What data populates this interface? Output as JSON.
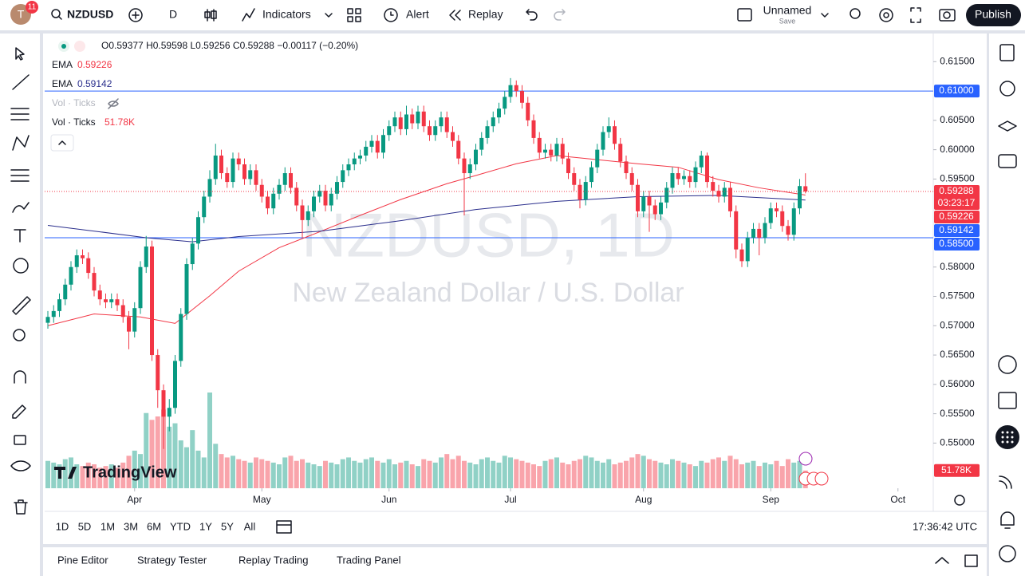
{
  "header": {
    "avatar": "T",
    "badge": "11",
    "symbol": "NZDUSD",
    "interval": "D",
    "indicators": "Indicators",
    "alert": "Alert",
    "replay": "Replay",
    "layout_name": "Unnamed",
    "save": "Save",
    "publish": "Publish"
  },
  "chart_data": {
    "type": "candlestick",
    "title": "NZDUSD, 1D",
    "subtitle": "New Zealand Dollar / U.S. Dollar",
    "ohlc_labels": [
      "O",
      "H",
      "L",
      "C"
    ],
    "change": "−0.00117 (−0.20%)",
    "countdown": "03:23:17",
    "up_color": "#089981",
    "down_color": "#f23645",
    "candles": [
      [
        0.5705,
        0.5725,
        0.5695,
        0.5715
      ],
      [
        0.5715,
        0.5735,
        0.5705,
        0.5725
      ],
      [
        0.5725,
        0.5755,
        0.5715,
        0.5745
      ],
      [
        0.5745,
        0.578,
        0.5735,
        0.577
      ],
      [
        0.577,
        0.581,
        0.576,
        0.58
      ],
      [
        0.58,
        0.583,
        0.579,
        0.582
      ],
      [
        0.582,
        0.583,
        0.5805,
        0.5815
      ],
      [
        0.5815,
        0.5825,
        0.578,
        0.579
      ],
      [
        0.579,
        0.58,
        0.575,
        0.576
      ],
      [
        0.576,
        0.577,
        0.5735,
        0.5745
      ],
      [
        0.5745,
        0.5755,
        0.573,
        0.574
      ],
      [
        0.574,
        0.5755,
        0.573,
        0.5745
      ],
      [
        0.5745,
        0.5755,
        0.5725,
        0.5735
      ],
      [
        0.5735,
        0.5745,
        0.5705,
        0.5715
      ],
      [
        0.5715,
        0.5725,
        0.566,
        0.569
      ],
      [
        0.569,
        0.574,
        0.568,
        0.573
      ],
      [
        0.573,
        0.581,
        0.572,
        0.58
      ],
      [
        0.58,
        0.5853,
        0.579,
        0.5835
      ],
      [
        0.5835,
        0.5845,
        0.564,
        0.565
      ],
      [
        0.565,
        0.566,
        0.556,
        0.559
      ],
      [
        0.559,
        0.56,
        0.549,
        0.5545
      ],
      [
        0.5545,
        0.5575,
        0.552,
        0.556
      ],
      [
        0.556,
        0.565,
        0.555,
        0.564
      ],
      [
        0.564,
        0.573,
        0.563,
        0.572
      ],
      [
        0.572,
        0.5815,
        0.571,
        0.5805
      ],
      [
        0.5805,
        0.585,
        0.5795,
        0.584
      ],
      [
        0.584,
        0.5895,
        0.583,
        0.5885
      ],
      [
        0.5885,
        0.593,
        0.5875,
        0.592
      ],
      [
        0.592,
        0.5965,
        0.591,
        0.595
      ],
      [
        0.595,
        0.601,
        0.594,
        0.599
      ],
      [
        0.599,
        0.6,
        0.595,
        0.596
      ],
      [
        0.596,
        0.597,
        0.5935,
        0.5945
      ],
      [
        0.5945,
        0.5995,
        0.5935,
        0.5985
      ],
      [
        0.5985,
        0.5995,
        0.5965,
        0.5975
      ],
      [
        0.5975,
        0.5985,
        0.594,
        0.595
      ],
      [
        0.595,
        0.5975,
        0.594,
        0.5965
      ],
      [
        0.5965,
        0.5975,
        0.593,
        0.594
      ],
      [
        0.594,
        0.595,
        0.591,
        0.592
      ],
      [
        0.592,
        0.593,
        0.589,
        0.59
      ],
      [
        0.59,
        0.5935,
        0.589,
        0.5925
      ],
      [
        0.5925,
        0.595,
        0.5915,
        0.594
      ],
      [
        0.594,
        0.597,
        0.593,
        0.596
      ],
      [
        0.596,
        0.597,
        0.5925,
        0.5935
      ],
      [
        0.5935,
        0.5945,
        0.5895,
        0.5905
      ],
      [
        0.5905,
        0.5915,
        0.585,
        0.588
      ],
      [
        0.588,
        0.5905,
        0.587,
        0.5895
      ],
      [
        0.5895,
        0.593,
        0.5885,
        0.592
      ],
      [
        0.592,
        0.594,
        0.591,
        0.593
      ],
      [
        0.593,
        0.594,
        0.5895,
        0.5905
      ],
      [
        0.5905,
        0.5935,
        0.5895,
        0.5925
      ],
      [
        0.5925,
        0.5955,
        0.5915,
        0.5945
      ],
      [
        0.5945,
        0.5975,
        0.5935,
        0.5965
      ],
      [
        0.5965,
        0.5985,
        0.5955,
        0.5975
      ],
      [
        0.5975,
        0.5995,
        0.5965,
        0.5985
      ],
      [
        0.5985,
        0.6,
        0.5975,
        0.599
      ],
      [
        0.599,
        0.6015,
        0.598,
        0.6005
      ],
      [
        0.6005,
        0.6025,
        0.5995,
        0.6015
      ],
      [
        0.6015,
        0.6025,
        0.5985,
        0.5995
      ],
      [
        0.5995,
        0.6035,
        0.5985,
        0.6025
      ],
      [
        0.6025,
        0.605,
        0.6015,
        0.604
      ],
      [
        0.604,
        0.6065,
        0.603,
        0.6055
      ],
      [
        0.6055,
        0.6065,
        0.6025,
        0.6035
      ],
      [
        0.6035,
        0.6075,
        0.6025,
        0.606
      ],
      [
        0.606,
        0.607,
        0.6035,
        0.6045
      ],
      [
        0.6045,
        0.6075,
        0.6035,
        0.6065
      ],
      [
        0.6065,
        0.6075,
        0.603,
        0.604
      ],
      [
        0.604,
        0.605,
        0.6015,
        0.6025
      ],
      [
        0.6025,
        0.605,
        0.6015,
        0.604
      ],
      [
        0.604,
        0.6065,
        0.603,
        0.6055
      ],
      [
        0.6055,
        0.6065,
        0.602,
        0.603
      ],
      [
        0.603,
        0.604,
        0.6005,
        0.6015
      ],
      [
        0.6015,
        0.6025,
        0.5975,
        0.5985
      ],
      [
        0.5985,
        0.5995,
        0.5888,
        0.596
      ],
      [
        0.596,
        0.5985,
        0.595,
        0.5975
      ],
      [
        0.5975,
        0.601,
        0.5965,
        0.6
      ],
      [
        0.6,
        0.603,
        0.599,
        0.602
      ],
      [
        0.602,
        0.605,
        0.601,
        0.604
      ],
      [
        0.604,
        0.6065,
        0.603,
        0.6055
      ],
      [
        0.6055,
        0.608,
        0.6045,
        0.607
      ],
      [
        0.607,
        0.61,
        0.606,
        0.609
      ],
      [
        0.609,
        0.6122,
        0.608,
        0.611
      ],
      [
        0.611,
        0.6118,
        0.609,
        0.61
      ],
      [
        0.61,
        0.611,
        0.607,
        0.608
      ],
      [
        0.608,
        0.609,
        0.604,
        0.605
      ],
      [
        0.605,
        0.606,
        0.601,
        0.602
      ],
      [
        0.602,
        0.603,
        0.5985,
        0.5995
      ],
      [
        0.5995,
        0.601,
        0.5985,
        0.6
      ],
      [
        0.6,
        0.601,
        0.598,
        0.599
      ],
      [
        0.599,
        0.602,
        0.598,
        0.601
      ],
      [
        0.601,
        0.602,
        0.5975,
        0.5985
      ],
      [
        0.5985,
        0.5995,
        0.595,
        0.596
      ],
      [
        0.596,
        0.597,
        0.593,
        0.594
      ],
      [
        0.594,
        0.595,
        0.59,
        0.5915
      ],
      [
        0.5915,
        0.5955,
        0.5905,
        0.5945
      ],
      [
        0.5945,
        0.598,
        0.5935,
        0.597
      ],
      [
        0.597,
        0.601,
        0.596,
        0.6
      ],
      [
        0.6,
        0.604,
        0.599,
        0.603
      ],
      [
        0.603,
        0.6055,
        0.602,
        0.604
      ],
      [
        0.604,
        0.605,
        0.6,
        0.601
      ],
      [
        0.601,
        0.602,
        0.597,
        0.598
      ],
      [
        0.598,
        0.599,
        0.595,
        0.596
      ],
      [
        0.596,
        0.597,
        0.593,
        0.594
      ],
      [
        0.594,
        0.595,
        0.5885,
        0.5895
      ],
      [
        0.5895,
        0.593,
        0.5885,
        0.592
      ],
      [
        0.592,
        0.593,
        0.586,
        0.5905
      ],
      [
        0.5905,
        0.5915,
        0.588,
        0.589
      ],
      [
        0.589,
        0.592,
        0.588,
        0.591
      ],
      [
        0.591,
        0.5945,
        0.59,
        0.5935
      ],
      [
        0.5935,
        0.597,
        0.5925,
        0.596
      ],
      [
        0.596,
        0.597,
        0.594,
        0.595
      ],
      [
        0.595,
        0.5965,
        0.594,
        0.5955
      ],
      [
        0.5955,
        0.5965,
        0.5935,
        0.5945
      ],
      [
        0.5945,
        0.598,
        0.5935,
        0.597
      ],
      [
        0.597,
        0.5998,
        0.596,
        0.599
      ],
      [
        0.599,
        0.5995,
        0.5935,
        0.5945
      ],
      [
        0.5945,
        0.5955,
        0.592,
        0.593
      ],
      [
        0.593,
        0.594,
        0.591,
        0.592
      ],
      [
        0.592,
        0.5945,
        0.591,
        0.5935
      ],
      [
        0.5935,
        0.5945,
        0.5885,
        0.5895
      ],
      [
        0.5895,
        0.5905,
        0.5815,
        0.583
      ],
      [
        0.583,
        0.584,
        0.58,
        0.581
      ],
      [
        0.581,
        0.586,
        0.58,
        0.585
      ],
      [
        0.585,
        0.5875,
        0.584,
        0.5865
      ],
      [
        0.5865,
        0.5875,
        0.582,
        0.585
      ],
      [
        0.585,
        0.5885,
        0.584,
        0.5875
      ],
      [
        0.5875,
        0.591,
        0.5865,
        0.59
      ],
      [
        0.59,
        0.591,
        0.5885,
        0.5895
      ],
      [
        0.5895,
        0.5905,
        0.586,
        0.587
      ],
      [
        0.587,
        0.588,
        0.5845,
        0.5855
      ],
      [
        0.5855,
        0.591,
        0.5845,
        0.59
      ],
      [
        0.59,
        0.595,
        0.589,
        0.5938
      ],
      [
        0.59377,
        0.59598,
        0.59256,
        0.59288
      ]
    ],
    "volume": {
      "name": "Vol · Ticks",
      "last_label": "51.78K",
      "hidden_name": "Vol · Ticks",
      "values": [
        80,
        75,
        70,
        85,
        90,
        70,
        65,
        75,
        70,
        60,
        65,
        70,
        60,
        75,
        95,
        110,
        100,
        220,
        200,
        210,
        230,
        180,
        190,
        140,
        120,
        170,
        110,
        90,
        280,
        130,
        100,
        90,
        95,
        85,
        80,
        75,
        90,
        85,
        80,
        75,
        70,
        90,
        95,
        80,
        85,
        75,
        70,
        65,
        80,
        75,
        70,
        85,
        90,
        80,
        75,
        85,
        90,
        80,
        75,
        85,
        70,
        75,
        80,
        70,
        65,
        85,
        80,
        75,
        90,
        100,
        85,
        95,
        80,
        75,
        70,
        85,
        90,
        80,
        75,
        95,
        90,
        85,
        80,
        75,
        70,
        65,
        80,
        85,
        90,
        75,
        70,
        80,
        85,
        95,
        90,
        80,
        75,
        85,
        70,
        75,
        80,
        90,
        100,
        95,
        85,
        80,
        75,
        70,
        85,
        80,
        75,
        70,
        65,
        80,
        75,
        85,
        90,
        80,
        95,
        85,
        70,
        75,
        80,
        65,
        75,
        70,
        80,
        65,
        85,
        75,
        80,
        51.78
      ]
    },
    "series": [
      {
        "name": "EMA",
        "color": "#f23645",
        "x": [
          0,
          8,
          16,
          22,
          28,
          33,
          40,
          47,
          54,
          61,
          69,
          74,
          81,
          88,
          95,
          102,
          109,
          116,
          123,
          131
        ],
        "values": [
          0.57,
          0.572,
          0.5715,
          0.5704,
          0.5751,
          0.5793,
          0.5833,
          0.586,
          0.5888,
          0.5915,
          0.5942,
          0.5956,
          0.5976,
          0.599,
          0.5983,
          0.5976,
          0.597,
          0.5949,
          0.5935,
          0.59226
        ]
      },
      {
        "name": "EMA",
        "color": "#2a2e8c",
        "x": [
          0,
          9,
          17,
          25,
          33,
          47,
          61,
          74,
          88,
          102,
          116,
          131
        ],
        "values": [
          0.5871,
          0.586,
          0.585,
          0.5843,
          0.5852,
          0.5861,
          0.5879,
          0.5898,
          0.5912,
          0.592,
          0.5922,
          0.59142
        ]
      }
    ],
    "hlines": [
      {
        "value": 0.61,
        "label": "0.61000",
        "color": "#2962ff"
      },
      {
        "value": 0.585,
        "label": "0.58500",
        "color": "#2962ff"
      }
    ],
    "ylim": [
      0.5423,
      0.6198
    ],
    "yticks": [
      {
        "value": 0.615,
        "label": "0.61500"
      },
      {
        "value": 0.605,
        "label": "0.60500"
      },
      {
        "value": 0.6,
        "label": "0.60000"
      },
      {
        "value": 0.595,
        "label": "0.59500"
      },
      {
        "value": 0.58,
        "label": "0.58000"
      },
      {
        "value": 0.575,
        "label": "0.57500"
      },
      {
        "value": 0.57,
        "label": "0.57000"
      },
      {
        "value": 0.565,
        "label": "0.56500"
      },
      {
        "value": 0.56,
        "label": "0.56000"
      },
      {
        "value": 0.555,
        "label": "0.55500"
      },
      {
        "value": 0.55,
        "label": "0.55000"
      }
    ],
    "xticks": [
      {
        "value": 15,
        "label": "Apr"
      },
      {
        "value": 37,
        "label": "May"
      },
      {
        "value": 59,
        "label": "Jun"
      },
      {
        "value": 80,
        "label": "Jul"
      },
      {
        "value": 103,
        "label": "Aug"
      },
      {
        "value": 125,
        "label": "Sep"
      },
      {
        "value": 147,
        "label": "Oct"
      }
    ],
    "logo": "TradingView"
  },
  "bottom_bar": {
    "timeframes": [
      "1D",
      "5D",
      "1M",
      "3M",
      "6M",
      "YTD",
      "1Y",
      "5Y",
      "All"
    ],
    "clock": "17:36:42 UTC"
  },
  "panel_tabs": [
    "Pine Editor",
    "Strategy Tester",
    "Replay Trading",
    "Trading Panel"
  ]
}
